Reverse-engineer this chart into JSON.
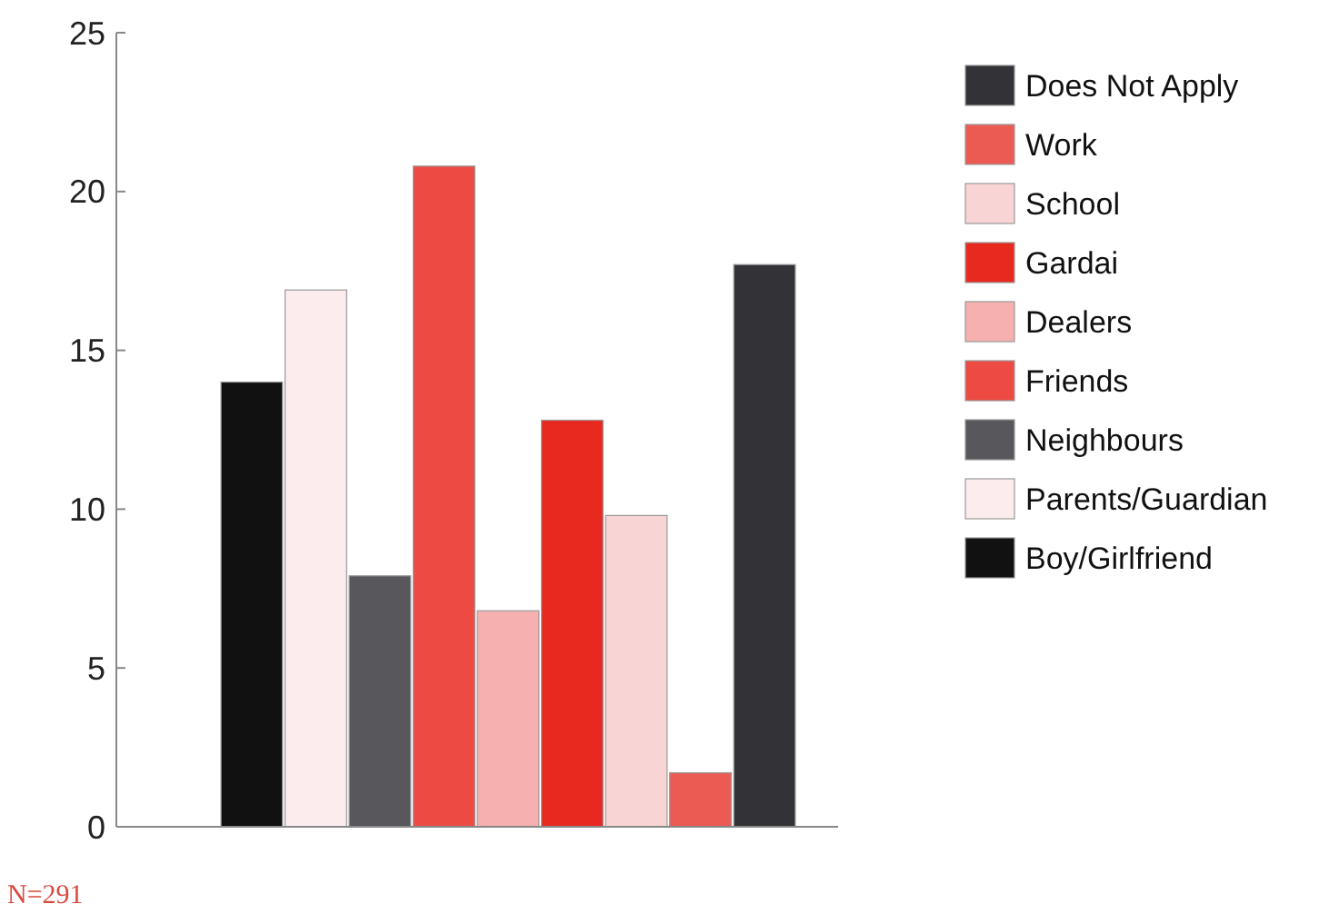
{
  "chart_data": {
    "type": "bar",
    "categories": [
      null
    ],
    "series": [
      {
        "name": "Boy/Girlfriend",
        "color": "#111111",
        "values": [
          14
        ]
      },
      {
        "name": "Parents/Guardian",
        "color": "#fcecee",
        "values": [
          16.9
        ]
      },
      {
        "name": "Neighbours",
        "color": "#58585c",
        "values": [
          7.9
        ]
      },
      {
        "name": "Friends",
        "color": "#ee4a44",
        "values": [
          20.8
        ]
      },
      {
        "name": "Dealers",
        "color": "#f6b0b0",
        "values": [
          6.8
        ]
      },
      {
        "name": "Gardai",
        "color": "#e8291f",
        "values": [
          12.8
        ]
      },
      {
        "name": "School",
        "color": "#f9d4d4",
        "values": [
          9.8
        ]
      },
      {
        "name": "Work",
        "color": "#ec5a54",
        "values": [
          1.7
        ]
      },
      {
        "name": "Does Not Apply",
        "color": "#333337",
        "values": [
          17.7
        ]
      }
    ],
    "ylim": [
      0,
      25
    ],
    "yticks": [
      0,
      5,
      10,
      15,
      20,
      25
    ],
    "grid": false,
    "legend": "right",
    "annotations": [
      "N=291"
    ]
  }
}
